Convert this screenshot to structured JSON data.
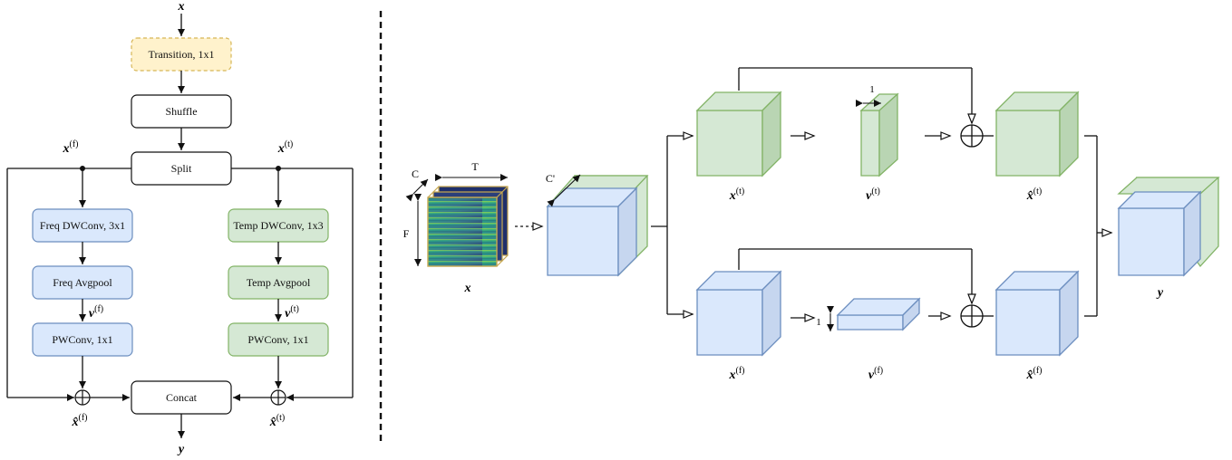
{
  "left_diagram": {
    "input_label": "x",
    "output_label": "y",
    "boxes": {
      "transition": "Transition, 1x1",
      "shuffle": "Shuffle",
      "split": "Split",
      "freq_dwconv": "Freq DWConv, 3x1",
      "freq_avgpool": "Freq Avgpool",
      "freq_pwconv": "PWConv, 1x1",
      "temp_dwconv": "Temp DWConv, 1x3",
      "temp_avgpool": "Temp Avgpool",
      "temp_pwconv": "PWConv, 1x1",
      "concat": "Concat"
    },
    "labels": {
      "x_f": {
        "base": "x",
        "sup": "(f)"
      },
      "x_t": {
        "base": "x",
        "sup": "(t)"
      },
      "v_f": {
        "base": "v",
        "sup": "(f)"
      },
      "v_t": {
        "base": "v",
        "sup": "(t)"
      },
      "xhat_f": {
        "base": "x̂",
        "sup": "(f)"
      },
      "xhat_t": {
        "base": "x̂",
        "sup": "(t)"
      }
    }
  },
  "right_diagram": {
    "input_label": "x",
    "input_dims": {
      "c": "C",
      "t": "T",
      "f": "F"
    },
    "channel_label": "C'",
    "x_t": {
      "base": "x",
      "sup": "(t)"
    },
    "v_t": {
      "base": "v",
      "sup": "(t)"
    },
    "v_t_width": "1",
    "xhat_t": {
      "base": "x̂",
      "sup": "(t)"
    },
    "x_f": {
      "base": "x",
      "sup": "(f)"
    },
    "v_f": {
      "base": "v",
      "sup": "(f)"
    },
    "v_f_height": "1",
    "xhat_f": {
      "base": "x̂",
      "sup": "(f)"
    },
    "output_label": "y"
  },
  "colors": {
    "transition_fill": "#fff2cc",
    "transition_stroke": "#d6b656",
    "blue_fill": "#dae8fc",
    "blue_stroke": "#6c8ebf",
    "green_fill": "#d5e8d4",
    "green_stroke": "#82b366",
    "spectrogram_border": "#c8a850"
  }
}
